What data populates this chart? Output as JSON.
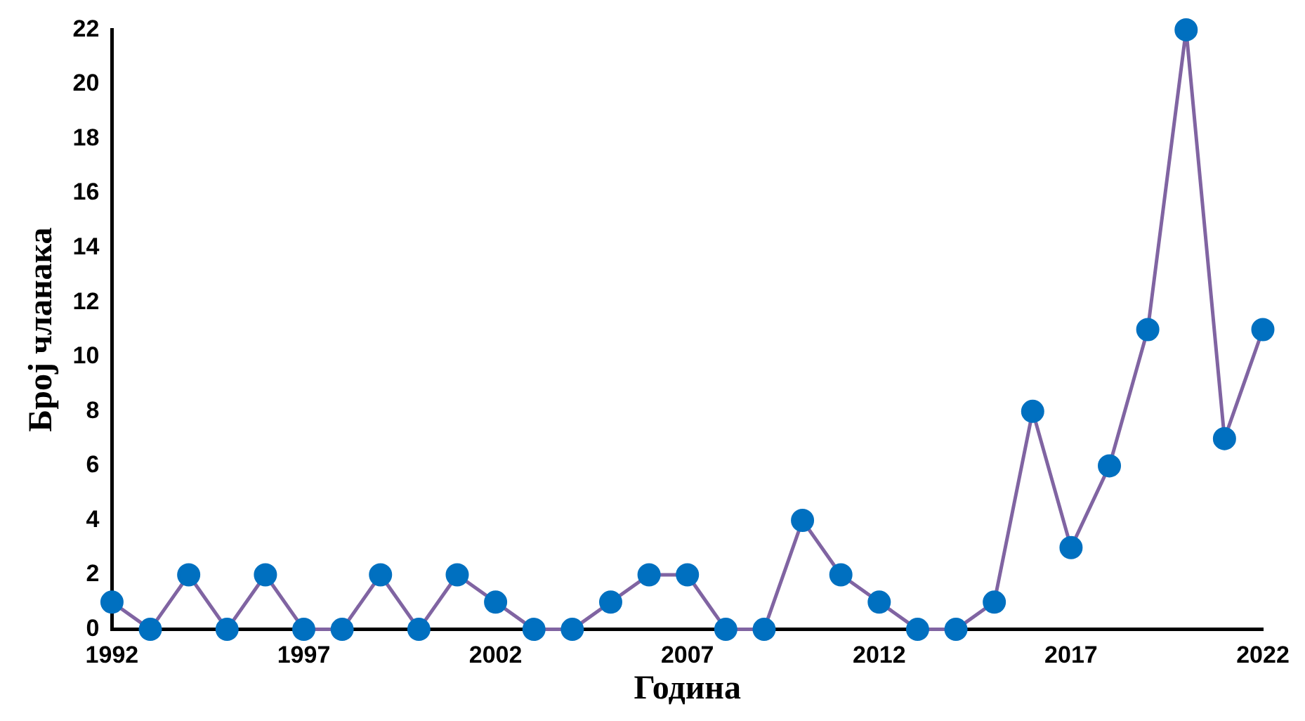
{
  "chart_data": {
    "type": "line",
    "xlabel": "Година",
    "ylabel": "Број чланака",
    "x": [
      1992,
      1993,
      1994,
      1995,
      1996,
      1997,
      1998,
      1999,
      2000,
      2001,
      2002,
      2003,
      2004,
      2005,
      2006,
      2007,
      2008,
      2009,
      2010,
      2011,
      2012,
      2013,
      2014,
      2015,
      2016,
      2017,
      2018,
      2019,
      2020,
      2021,
      2022
    ],
    "series": [
      {
        "color": "#8064a2",
        "values": [
          1,
          0,
          2,
          0,
          2,
          0,
          0,
          2,
          0,
          2,
          1,
          0,
          0,
          1,
          2,
          2,
          0,
          0,
          4,
          2,
          1,
          0,
          0,
          1,
          8,
          3,
          6,
          11,
          22,
          7,
          11
        ],
        "colors": [
          "#0070c0",
          "#0070c0",
          "#0070c0",
          "#0070c0",
          "#0070c0",
          "#0070c0",
          "#0070c0",
          "#0070c0",
          "#0070c0",
          "#0070c0",
          "#0070c0",
          "#0070c0",
          "#0070c0",
          "#0070c0",
          "#0070c0",
          "#0070c0",
          "#0070c0",
          "#0070c0",
          "#0070c0",
          "#0070c0",
          "#0070c0",
          "#0070c0",
          "#0070c0",
          "#0070c0",
          "#0070c0",
          "#0070c0",
          "#0070c0",
          "#0070c0",
          "#0070c0",
          "#0070c0",
          "#0070c0"
        ]
      }
    ],
    "xlim": [
      1992,
      2022
    ],
    "xticks": [
      1992,
      1997,
      2002,
      2007,
      2012,
      2017,
      2022
    ],
    "ylim": [
      0,
      22
    ],
    "yticks": [
      0,
      2,
      4,
      6,
      8,
      10,
      12,
      14,
      16,
      18,
      20,
      22
    ],
    "grid": false,
    "legend": false,
    "marker": "circle",
    "line_style": "solid"
  }
}
